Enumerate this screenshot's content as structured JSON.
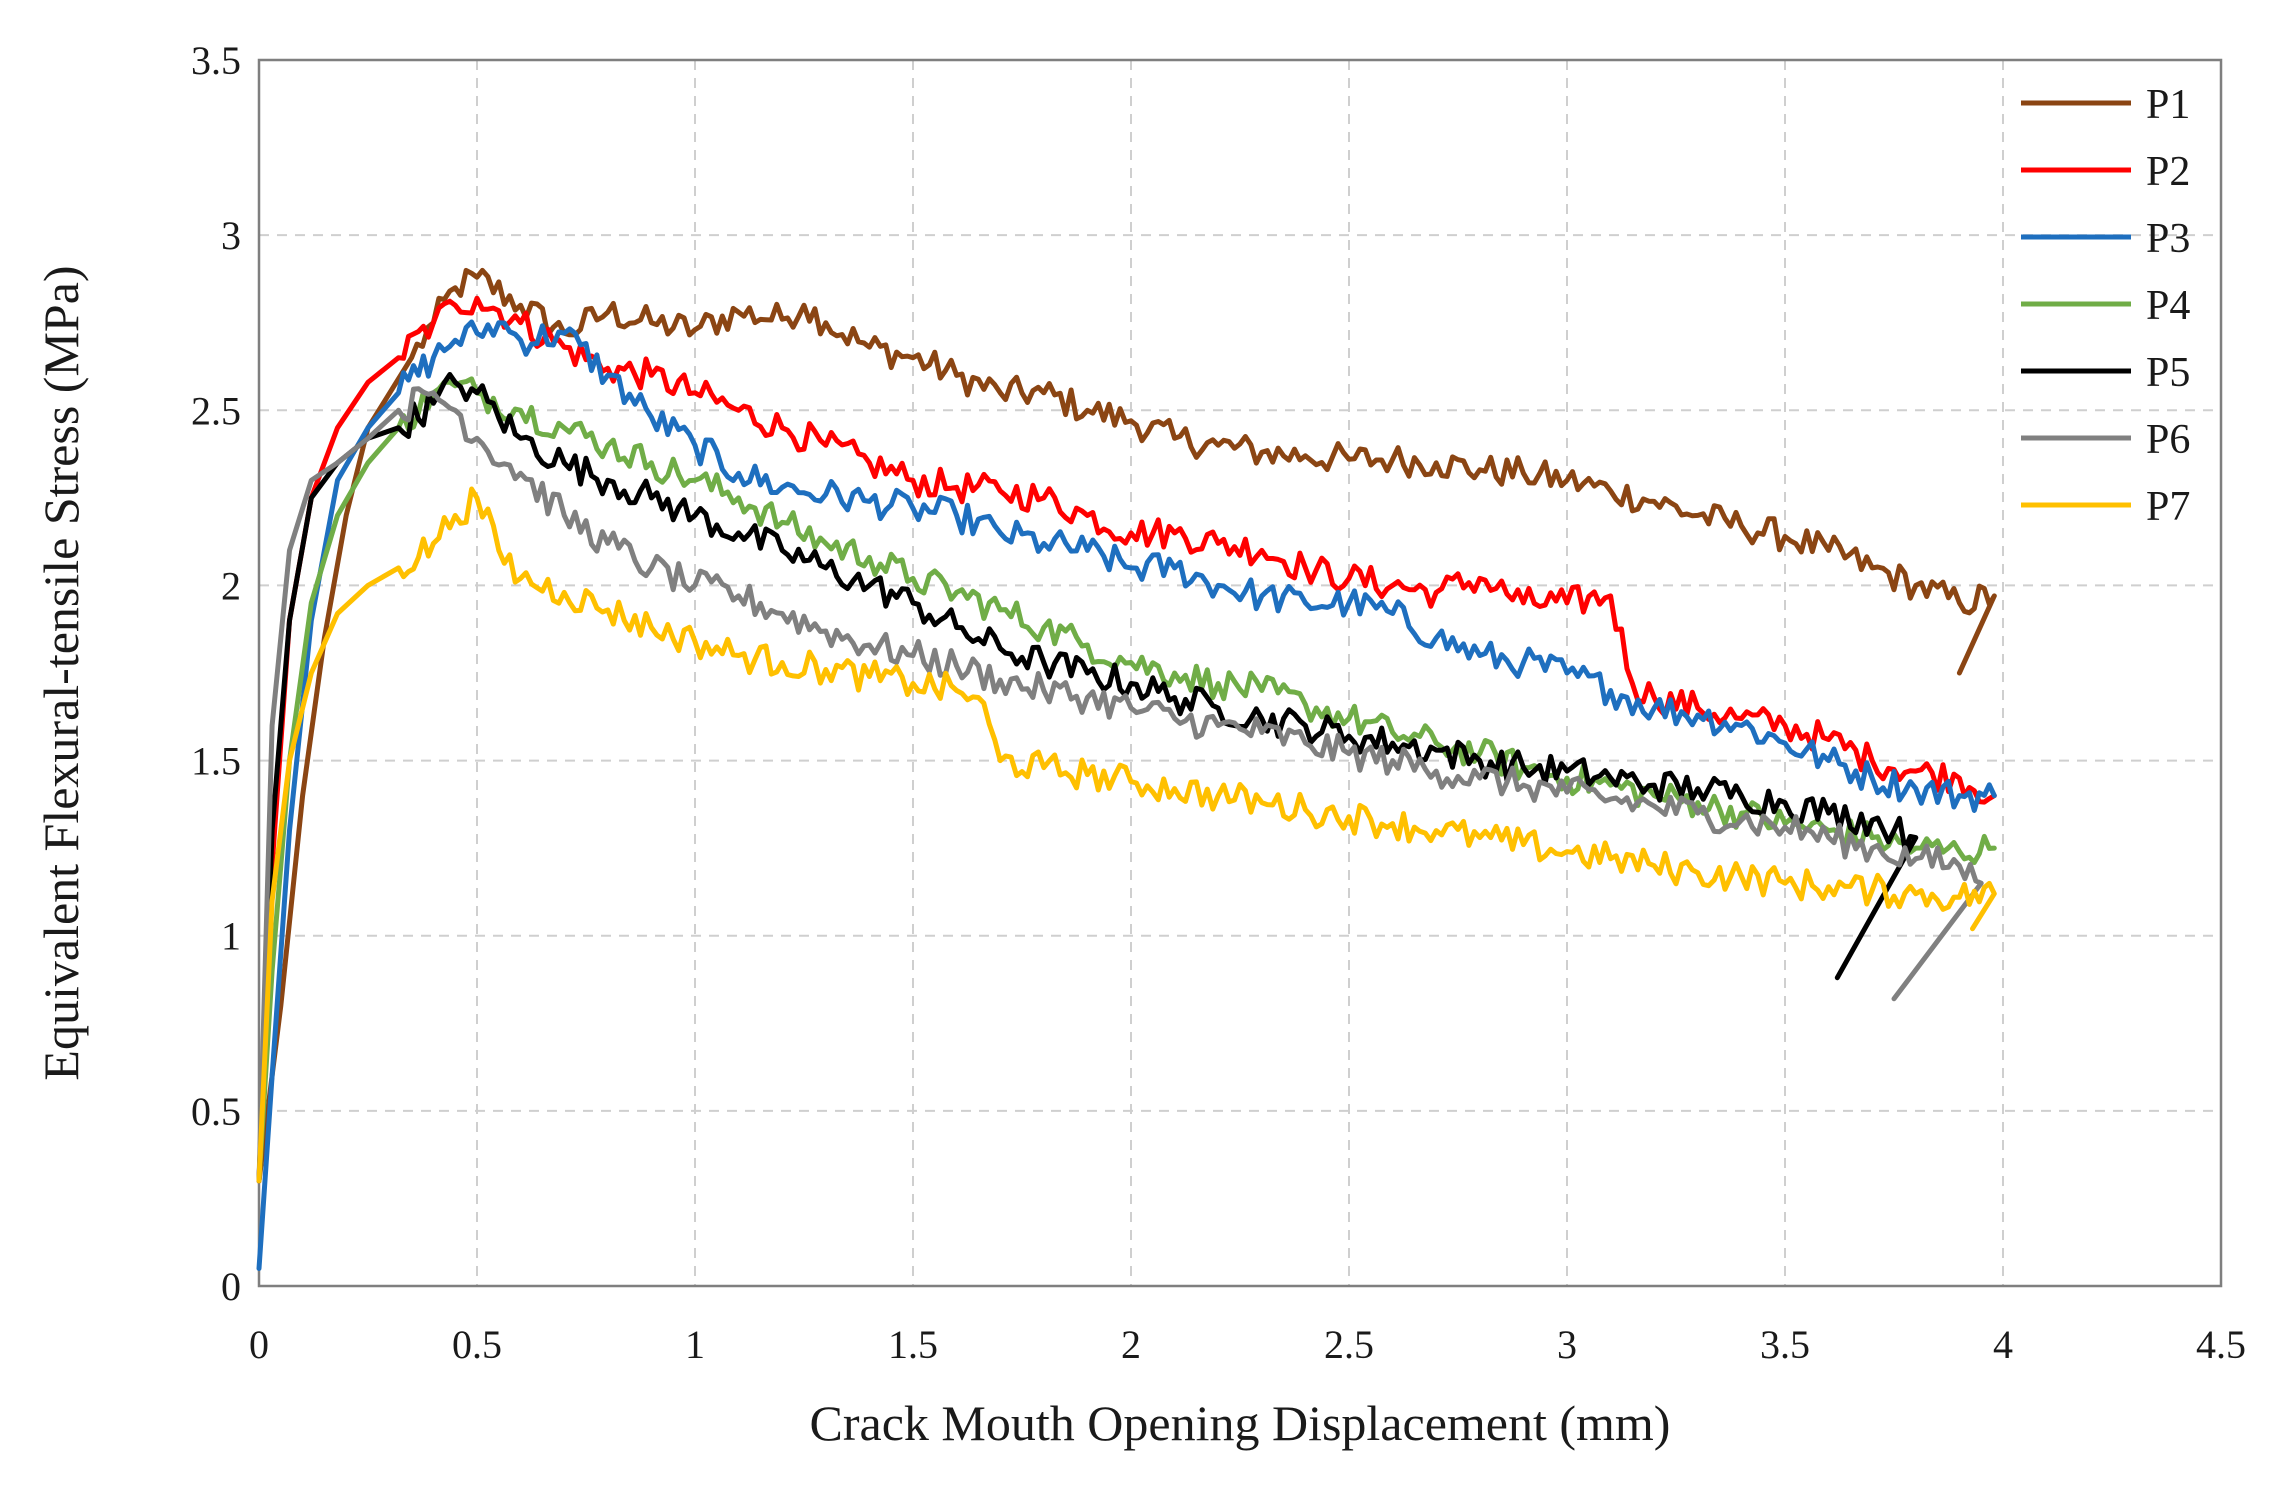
{
  "chart_data": {
    "type": "line",
    "title": "",
    "xlabel": "Crack Mouth Opening Displacement (mm)",
    "ylabel": "Equivalent Flexural-tensile Stress (MPa)",
    "xlim": [
      0,
      4.5
    ],
    "ylim": [
      0,
      3.5
    ],
    "xticks": [
      "0",
      "0.5",
      "1",
      "1.5",
      "2",
      "2.5",
      "3",
      "3.5",
      "4",
      "4.5"
    ],
    "yticks": [
      "0",
      "0.5",
      "1",
      "1.5",
      "2",
      "2.5",
      "3",
      "3.5"
    ],
    "grid": true,
    "legend_position": "top-right",
    "series": [
      {
        "name": "P1",
        "color": "#8B4513",
        "x": [
          0,
          0.05,
          0.1,
          0.15,
          0.2,
          0.25,
          0.3,
          0.35,
          0.4,
          0.45,
          0.5,
          0.6,
          0.7,
          0.8,
          0.9,
          1.0,
          1.1,
          1.2,
          1.25,
          1.3,
          1.4,
          1.5,
          1.6,
          1.7,
          1.8,
          1.9,
          2.0,
          2.1,
          2.2,
          2.3,
          2.4,
          2.5,
          2.6,
          2.7,
          2.8,
          2.9,
          3.0,
          3.1,
          3.2,
          3.3,
          3.4,
          3.5,
          3.6,
          3.7,
          3.8,
          3.9,
          3.98,
          3.9
        ],
        "y": [
          0.3,
          0.8,
          1.4,
          1.85,
          2.2,
          2.45,
          2.55,
          2.65,
          2.75,
          2.85,
          2.88,
          2.8,
          2.72,
          2.78,
          2.75,
          2.73,
          2.78,
          2.76,
          2.8,
          2.75,
          2.68,
          2.65,
          2.6,
          2.55,
          2.55,
          2.5,
          2.47,
          2.42,
          2.4,
          2.38,
          2.37,
          2.36,
          2.36,
          2.35,
          2.33,
          2.32,
          2.3,
          2.27,
          2.24,
          2.2,
          2.17,
          2.14,
          2.1,
          2.05,
          2.0,
          1.95,
          1.97,
          1.75
        ]
      },
      {
        "name": "P2",
        "color": "#FF0000",
        "x": [
          0,
          0.03,
          0.07,
          0.12,
          0.18,
          0.25,
          0.32,
          0.4,
          0.45,
          0.5,
          0.6,
          0.7,
          0.8,
          0.9,
          1.0,
          1.1,
          1.2,
          1.3,
          1.4,
          1.5,
          1.6,
          1.7,
          1.8,
          1.9,
          2.0,
          2.1,
          2.2,
          2.3,
          2.4,
          2.5,
          2.6,
          2.7,
          2.8,
          2.9,
          3.0,
          3.1,
          3.15,
          3.2,
          3.3,
          3.4,
          3.5,
          3.6,
          3.7,
          3.8,
          3.9,
          3.98
        ],
        "y": [
          0.3,
          1.2,
          1.9,
          2.25,
          2.45,
          2.58,
          2.65,
          2.75,
          2.8,
          2.82,
          2.75,
          2.68,
          2.62,
          2.6,
          2.55,
          2.5,
          2.45,
          2.4,
          2.35,
          2.3,
          2.28,
          2.27,
          2.25,
          2.2,
          2.15,
          2.15,
          2.12,
          2.1,
          2.05,
          2.02,
          2.0,
          1.98,
          2.02,
          1.95,
          1.95,
          1.97,
          1.72,
          1.68,
          1.65,
          1.62,
          1.6,
          1.56,
          1.5,
          1.47,
          1.45,
          1.4
        ]
      },
      {
        "name": "P3",
        "color": "#1E6FBF",
        "x": [
          0,
          0.03,
          0.07,
          0.12,
          0.18,
          0.25,
          0.32,
          0.4,
          0.45,
          0.5,
          0.55,
          0.6,
          0.7,
          0.8,
          0.9,
          1.0,
          1.1,
          1.2,
          1.3,
          1.4,
          1.5,
          1.6,
          1.7,
          1.8,
          1.9,
          2.0,
          2.1,
          2.2,
          2.3,
          2.4,
          2.5,
          2.6,
          2.7,
          2.8,
          2.9,
          3.0,
          3.1,
          3.2,
          3.3,
          3.4,
          3.5,
          3.6,
          3.7,
          3.8,
          3.9,
          3.98
        ],
        "y": [
          0.05,
          0.6,
          1.3,
          1.9,
          2.3,
          2.45,
          2.55,
          2.65,
          2.7,
          2.72,
          2.75,
          2.7,
          2.72,
          2.6,
          2.48,
          2.4,
          2.32,
          2.28,
          2.26,
          2.24,
          2.22,
          2.2,
          2.15,
          2.12,
          2.1,
          2.05,
          2.05,
          2.0,
          1.97,
          1.95,
          1.95,
          1.92,
          1.85,
          1.8,
          1.78,
          1.75,
          1.7,
          1.65,
          1.63,
          1.6,
          1.55,
          1.5,
          1.45,
          1.42,
          1.4,
          1.4
        ]
      },
      {
        "name": "P4",
        "color": "#70AD47",
        "x": [
          0,
          0.03,
          0.07,
          0.12,
          0.18,
          0.25,
          0.32,
          0.4,
          0.45,
          0.5,
          0.6,
          0.7,
          0.8,
          0.9,
          1.0,
          1.1,
          1.2,
          1.3,
          1.4,
          1.5,
          1.6,
          1.7,
          1.8,
          1.9,
          2.0,
          2.1,
          2.2,
          2.3,
          2.4,
          2.5,
          2.6,
          2.7,
          2.8,
          2.9,
          3.0,
          3.1,
          3.2,
          3.3,
          3.4,
          3.5,
          3.6,
          3.7,
          3.8,
          3.9,
          3.98
        ],
        "y": [
          0.3,
          0.9,
          1.5,
          1.95,
          2.2,
          2.35,
          2.45,
          2.55,
          2.57,
          2.55,
          2.5,
          2.45,
          2.4,
          2.35,
          2.3,
          2.25,
          2.18,
          2.12,
          2.08,
          2.02,
          1.98,
          1.93,
          1.88,
          1.83,
          1.78,
          1.75,
          1.72,
          1.7,
          1.66,
          1.62,
          1.58,
          1.55,
          1.52,
          1.48,
          1.45,
          1.43,
          1.4,
          1.38,
          1.35,
          1.32,
          1.3,
          1.28,
          1.25,
          1.24,
          1.25
        ]
      },
      {
        "name": "P5",
        "color": "#000000",
        "x": [
          0,
          0.03,
          0.07,
          0.12,
          0.18,
          0.25,
          0.32,
          0.4,
          0.45,
          0.5,
          0.6,
          0.7,
          0.8,
          0.9,
          1.0,
          1.1,
          1.2,
          1.3,
          1.4,
          1.5,
          1.6,
          1.7,
          1.8,
          1.9,
          2.0,
          2.1,
          2.2,
          2.3,
          2.4,
          2.5,
          2.6,
          2.7,
          2.8,
          2.9,
          3.0,
          3.1,
          3.2,
          3.3,
          3.4,
          3.5,
          3.6,
          3.7,
          3.75,
          3.8,
          3.62
        ],
        "y": [
          0.3,
          1.3,
          1.9,
          2.25,
          2.35,
          2.42,
          2.45,
          2.52,
          2.58,
          2.55,
          2.42,
          2.35,
          2.3,
          2.25,
          2.2,
          2.15,
          2.1,
          2.05,
          2.0,
          1.95,
          1.88,
          1.82,
          1.78,
          1.75,
          1.72,
          1.68,
          1.65,
          1.62,
          1.6,
          1.57,
          1.55,
          1.53,
          1.5,
          1.48,
          1.47,
          1.45,
          1.43,
          1.42,
          1.4,
          1.38,
          1.35,
          1.33,
          1.3,
          1.28,
          0.88
        ]
      },
      {
        "name": "P6",
        "color": "#808080",
        "x": [
          0,
          0.03,
          0.07,
          0.12,
          0.18,
          0.25,
          0.32,
          0.4,
          0.45,
          0.5,
          0.6,
          0.7,
          0.8,
          0.9,
          1.0,
          1.1,
          1.2,
          1.3,
          1.4,
          1.5,
          1.6,
          1.7,
          1.8,
          1.9,
          2.0,
          2.1,
          2.2,
          2.3,
          2.4,
          2.5,
          2.6,
          2.7,
          2.8,
          2.9,
          3.0,
          3.1,
          3.2,
          3.3,
          3.4,
          3.5,
          3.6,
          3.7,
          3.8,
          3.9,
          3.95,
          3.75
        ],
        "y": [
          0.3,
          1.6,
          2.1,
          2.3,
          2.35,
          2.42,
          2.5,
          2.55,
          2.5,
          2.42,
          2.32,
          2.2,
          2.12,
          2.05,
          2.0,
          1.97,
          1.92,
          1.87,
          1.83,
          1.8,
          1.77,
          1.73,
          1.7,
          1.68,
          1.65,
          1.62,
          1.6,
          1.58,
          1.55,
          1.52,
          1.5,
          1.47,
          1.45,
          1.43,
          1.41,
          1.39,
          1.37,
          1.35,
          1.33,
          1.31,
          1.28,
          1.25,
          1.22,
          1.2,
          1.15,
          0.82
        ]
      },
      {
        "name": "P7",
        "color": "#FFC000",
        "x": [
          0,
          0.03,
          0.07,
          0.12,
          0.18,
          0.25,
          0.32,
          0.4,
          0.45,
          0.5,
          0.55,
          0.6,
          0.7,
          0.8,
          0.9,
          1.0,
          1.1,
          1.2,
          1.3,
          1.4,
          1.5,
          1.6,
          1.65,
          1.7,
          1.8,
          1.9,
          2.0,
          2.1,
          2.2,
          2.3,
          2.4,
          2.5,
          2.6,
          2.7,
          2.8,
          2.9,
          3.0,
          3.1,
          3.2,
          3.3,
          3.4,
          3.5,
          3.6,
          3.7,
          3.8,
          3.9,
          3.98,
          3.93
        ],
        "y": [
          0.3,
          1.1,
          1.5,
          1.75,
          1.92,
          2.0,
          2.05,
          2.12,
          2.2,
          2.25,
          2.1,
          2.02,
          1.98,
          1.93,
          1.88,
          1.84,
          1.8,
          1.78,
          1.76,
          1.74,
          1.72,
          1.7,
          1.68,
          1.5,
          1.48,
          1.46,
          1.44,
          1.42,
          1.4,
          1.38,
          1.36,
          1.34,
          1.32,
          1.3,
          1.28,
          1.26,
          1.24,
          1.22,
          1.2,
          1.18,
          1.17,
          1.15,
          1.14,
          1.13,
          1.12,
          1.11,
          1.12,
          1.02
        ]
      }
    ]
  }
}
